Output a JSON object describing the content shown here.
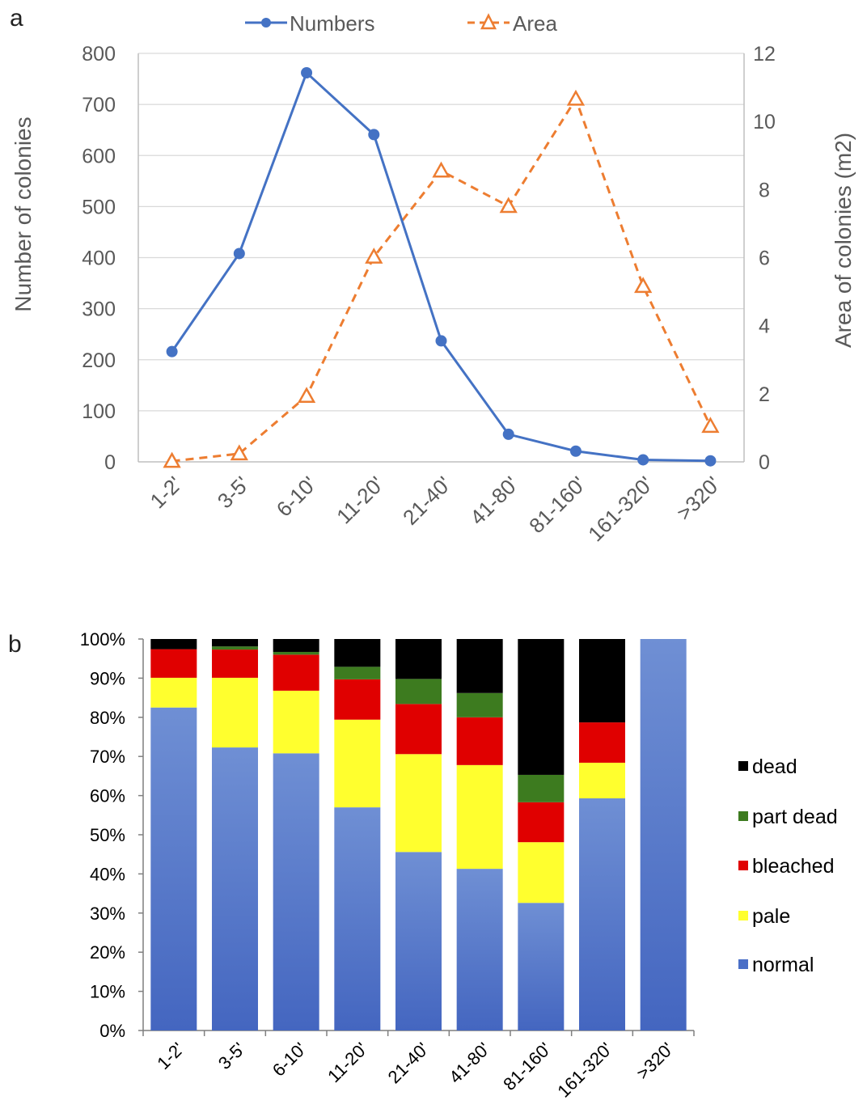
{
  "colors": {
    "numbers": "#4472c4",
    "area": "#ed7d31",
    "axis_text": "#595959",
    "gridline": "#d9d9d9",
    "dead": "#000000",
    "part_dead": "#3d7b1f",
    "bleached": "#e00000",
    "pale": "#ffff2e",
    "normal": "#4a6fc7"
  },
  "chart_data": [
    {
      "type": "line",
      "panel_label": "a",
      "categories": [
        "1-2'",
        "3-5'",
        "6-10'",
        "11-20'",
        "21-40'",
        "41-80'",
        "81-160'",
        "161-320'",
        ">320'"
      ],
      "series": [
        {
          "name": "Numbers",
          "axis": "left",
          "marker": "circle",
          "line": "solid",
          "values": [
            216,
            408,
            762,
            641,
            237,
            54,
            21,
            4,
            2
          ]
        },
        {
          "name": "Area",
          "axis": "right",
          "marker": "triangle",
          "line": "dashed",
          "values": [
            0.02,
            0.24,
            1.93,
            6.02,
            8.55,
            7.51,
            10.66,
            5.16,
            1.05
          ]
        }
      ],
      "ylabel": "Number of colonies",
      "y2label": "Area of colonies (m2)",
      "ylim": [
        0,
        800
      ],
      "yticks": [
        "0",
        "100",
        "200",
        "300",
        "400",
        "500",
        "600",
        "700",
        "800"
      ],
      "y2lim": [
        0,
        12
      ],
      "y2ticks": [
        "0",
        "2",
        "4",
        "6",
        "8",
        "10",
        "12"
      ],
      "grid": true,
      "legend": "top"
    },
    {
      "type": "bar",
      "stacked": "percent",
      "panel_label": "b",
      "categories": [
        "1-2'",
        "3-5'",
        "6-10'",
        "11-20'",
        "21-40'",
        "41-80'",
        "81-160'",
        "161-320'",
        ">320'"
      ],
      "series": [
        {
          "name": "normal",
          "values": [
            82.5,
            72.3,
            70.8,
            57.0,
            45.6,
            41.3,
            32.6,
            59.3,
            100
          ]
        },
        {
          "name": "pale",
          "values": [
            7.6,
            17.8,
            16.0,
            22.4,
            25.0,
            26.5,
            15.5,
            9.1,
            0
          ]
        },
        {
          "name": "bleached",
          "values": [
            7.3,
            7.2,
            9.2,
            10.3,
            12.8,
            12.2,
            10.2,
            10.3,
            0
          ]
        },
        {
          "name": "part dead",
          "values": [
            0,
            0.8,
            0.7,
            3.2,
            6.4,
            6.2,
            7.0,
            0,
            0
          ]
        },
        {
          "name": "dead",
          "values": [
            2.6,
            1.9,
            3.3,
            7.1,
            10.2,
            13.8,
            34.7,
            21.3,
            0
          ]
        }
      ],
      "yticks": [
        "0%",
        "10%",
        "20%",
        "30%",
        "40%",
        "50%",
        "60%",
        "70%",
        "80%",
        "90%",
        "100%"
      ],
      "ylim": [
        0,
        100
      ],
      "grid": false,
      "legend": "right",
      "legend_order": [
        "dead",
        "part dead",
        "bleached",
        "pale",
        "normal"
      ]
    }
  ]
}
